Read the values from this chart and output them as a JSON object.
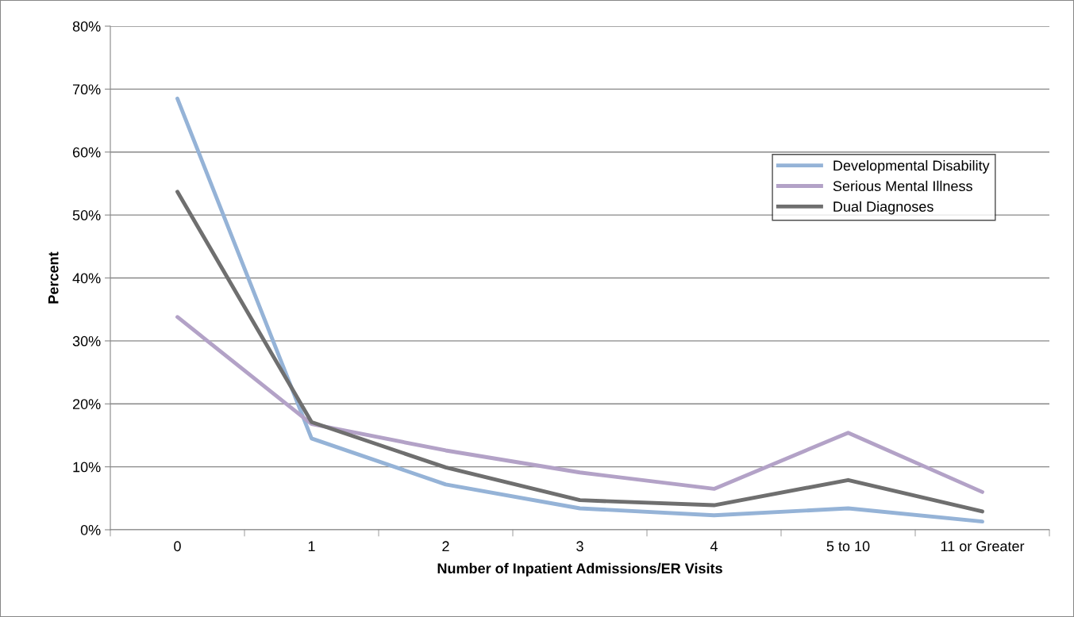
{
  "chart_data": {
    "type": "line",
    "xlabel": "Number of Inpatient Admissions/ER Visits",
    "ylabel": "Percent",
    "categories": [
      "0",
      "1",
      "2",
      "3",
      "4",
      "5 to 10",
      "11 or Greater"
    ],
    "series": [
      {
        "name": "Developmental Disability",
        "color": "#95b3d7",
        "values": [
          68.5,
          14.5,
          7.2,
          3.4,
          2.3,
          3.4,
          1.3
        ]
      },
      {
        "name": "Serious Mental Illness",
        "color": "#b3a2c7",
        "values": [
          33.8,
          16.8,
          12.6,
          9.1,
          6.5,
          15.4,
          6.0
        ]
      },
      {
        "name": "Dual Diagnoses",
        "color": "#6f6f6f",
        "values": [
          53.7,
          17.1,
          9.9,
          4.7,
          3.9,
          7.9,
          2.9
        ]
      }
    ],
    "ylim": [
      0,
      80
    ],
    "yticks": [
      {
        "value": 0,
        "label": "0%"
      },
      {
        "value": 10,
        "label": "10%"
      },
      {
        "value": 20,
        "label": "20%"
      },
      {
        "value": 30,
        "label": "30%"
      },
      {
        "value": 40,
        "label": "40%"
      },
      {
        "value": 50,
        "label": "50%"
      },
      {
        "value": 60,
        "label": "60%"
      },
      {
        "value": 70,
        "label": "70%"
      },
      {
        "value": 80,
        "label": "80%"
      }
    ],
    "grid": "y",
    "legend": "right",
    "marker": "none",
    "line_style": "solid"
  }
}
